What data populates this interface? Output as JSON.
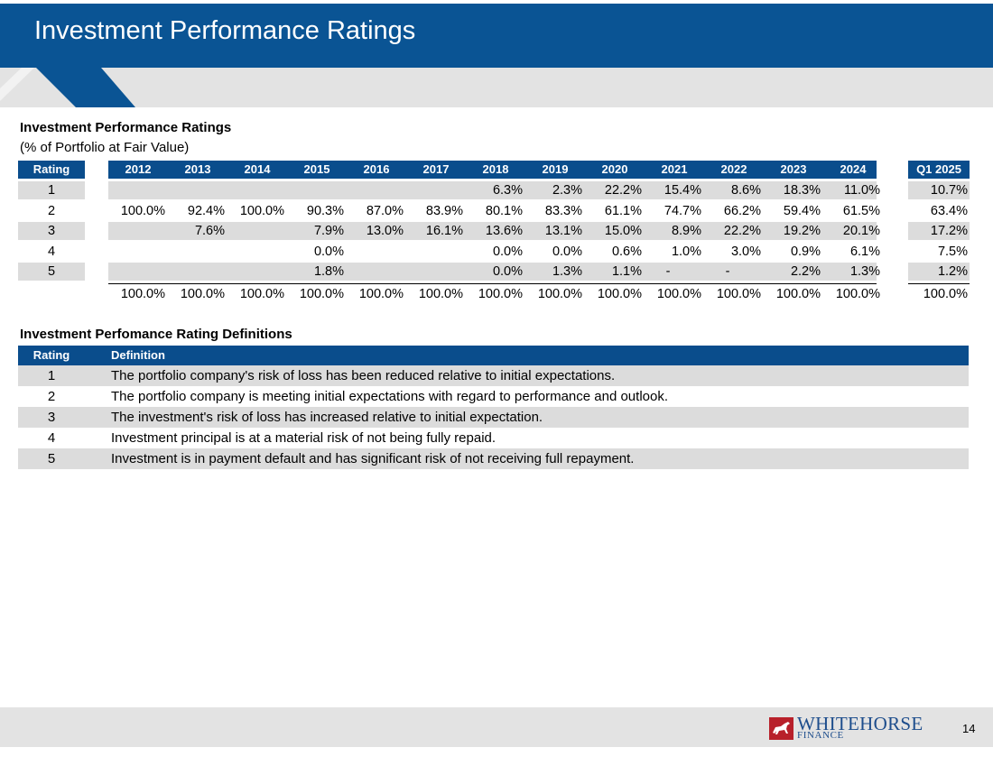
{
  "header": {
    "title": "Investment Performance Ratings"
  },
  "ratings_table": {
    "title": "Investment Performance Ratings",
    "subtitle": "(% of Portfolio at Fair Value)",
    "rating_header": "Rating",
    "years": [
      "2012",
      "2013",
      "2014",
      "2015",
      "2016",
      "2017",
      "2018",
      "2019",
      "2020",
      "2021",
      "2022",
      "2023",
      "2024"
    ],
    "q_header": "Q1 2025",
    "rows": [
      {
        "rating": "1",
        "values": [
          "",
          "",
          "",
          "",
          "",
          "",
          "6.3%",
          "2.3%",
          "22.2%",
          "15.4%",
          "8.6%",
          "18.3%",
          "11.0%"
        ],
        "q": "10.7%"
      },
      {
        "rating": "2",
        "values": [
          "100.0%",
          "92.4%",
          "100.0%",
          "90.3%",
          "87.0%",
          "83.9%",
          "80.1%",
          "83.3%",
          "61.1%",
          "74.7%",
          "66.2%",
          "59.4%",
          "61.5%"
        ],
        "q": "63.4%"
      },
      {
        "rating": "3",
        "values": [
          "",
          "7.6%",
          "",
          "7.9%",
          "13.0%",
          "16.1%",
          "13.6%",
          "13.1%",
          "15.0%",
          "8.9%",
          "22.2%",
          "19.2%",
          "20.1%"
        ],
        "q": "17.2%"
      },
      {
        "rating": "4",
        "values": [
          "",
          "",
          "",
          "0.0%",
          "",
          "",
          "0.0%",
          "0.0%",
          "0.6%",
          "1.0%",
          "3.0%",
          "0.9%",
          "6.1%"
        ],
        "q": "7.5%"
      },
      {
        "rating": "5",
        "values": [
          "",
          "",
          "",
          "1.8%",
          "",
          "",
          "0.0%",
          "1.3%",
          "1.1%",
          "-",
          "-",
          "2.2%",
          "1.3%"
        ],
        "q": "1.2%"
      }
    ],
    "totals": [
      "100.0%",
      "100.0%",
      "100.0%",
      "100.0%",
      "100.0%",
      "100.0%",
      "100.0%",
      "100.0%",
      "100.0%",
      "100.0%",
      "100.0%",
      "100.0%",
      "100.0%"
    ],
    "q_total": "100.0%"
  },
  "definitions": {
    "title": "Investment Perfomance Rating Definitions",
    "rating_header": "Rating",
    "definition_header": "Definition",
    "rows": [
      {
        "rating": "1",
        "text": "The portfolio company's risk of loss has been reduced relative to initial expectations."
      },
      {
        "rating": "2",
        "text": "The portfolio company is meeting initial expectations with regard to performance and outlook."
      },
      {
        "rating": "3",
        "text": "The investment's risk of loss has increased relative to initial expectation."
      },
      {
        "rating": "4",
        "text": "Investment principal is at a material risk of not being fully repaid."
      },
      {
        "rating": "5",
        "text": "Investment is in payment default and has significant risk of not receiving full repayment."
      }
    ]
  },
  "footer": {
    "logo_top": "WHITEHORSE",
    "logo_bottom": "FINANCE",
    "page_number": "14"
  },
  "colors": {
    "header": "#0a5494",
    "table_header": "#0a4d8c",
    "stripe": "#dcdcdc",
    "band": "#e3e3e3",
    "logo_red": "#b8202a",
    "logo_blue": "#1d4d8c"
  }
}
